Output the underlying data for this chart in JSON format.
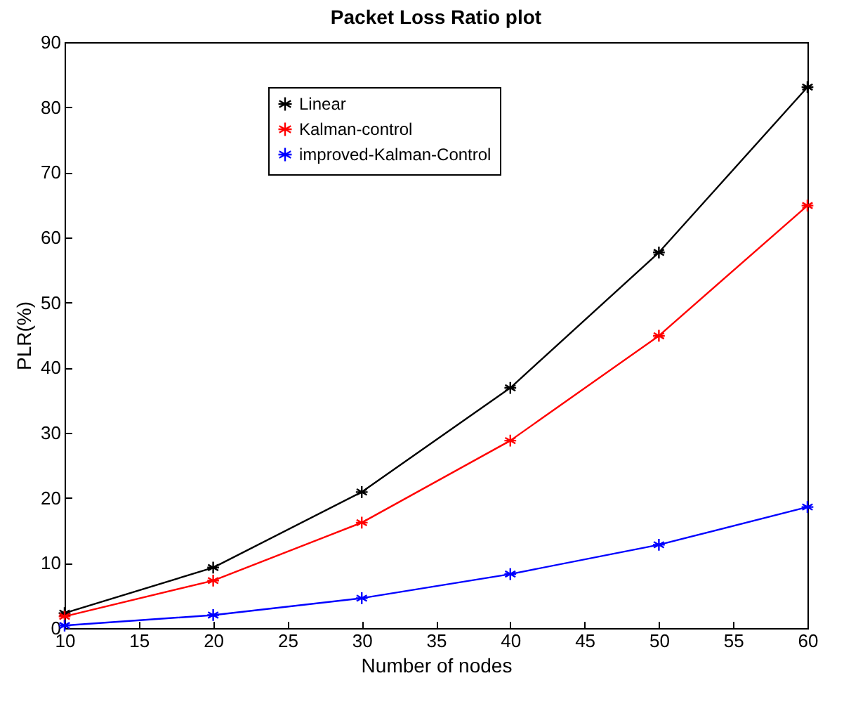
{
  "chart_data": {
    "type": "line",
    "title": "Packet Loss Ratio plot",
    "xlabel": "Number of nodes",
    "ylabel": "PLR(%)",
    "x": [
      10,
      20,
      30,
      40,
      50,
      60
    ],
    "series": [
      {
        "name": "Linear",
        "color": "#000000",
        "values": [
          2.3,
          9.3,
          20.9,
          36.9,
          57.7,
          83.1
        ]
      },
      {
        "name": "Kalman-control",
        "color": "#ff0000",
        "values": [
          1.8,
          7.3,
          16.2,
          28.8,
          44.9,
          64.9
        ]
      },
      {
        "name": "improved-Kalman-Control",
        "color": "#0000ff",
        "values": [
          0.4,
          2.0,
          4.6,
          8.3,
          12.8,
          18.6
        ]
      }
    ],
    "xlim": [
      10,
      60
    ],
    "xticks": [
      10,
      15,
      20,
      25,
      30,
      35,
      40,
      45,
      50,
      55,
      60
    ],
    "ylim": [
      0,
      90
    ],
    "yticks": [
      0,
      10,
      20,
      30,
      40,
      50,
      60,
      70,
      80,
      90
    ],
    "grid": false,
    "legend": "top",
    "marker": "cross",
    "line_style": "solid"
  }
}
